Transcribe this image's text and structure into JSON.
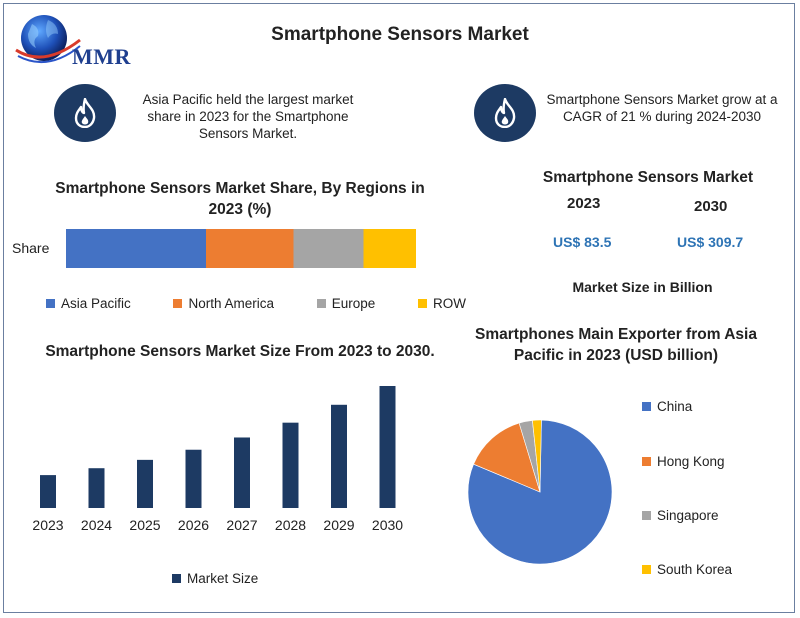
{
  "header": {
    "title": "Smartphone Sensors Market",
    "logo_text": "MMR"
  },
  "facts": [
    {
      "icon": "flame-icon",
      "text": "Asia Pacific held the largest market share in 2023 for the Smartphone Sensors Market."
    },
    {
      "icon": "flame-icon",
      "text": "Smartphone Sensors Market grow at a CAGR of 21 % during 2024-2030"
    }
  ],
  "kpi": {
    "title": "Smartphone Sensors Market",
    "year_a": "2023",
    "year_b": "2030",
    "value_a": "US$ 83.5",
    "value_b": "US$ 309.7",
    "unit_label": "Market Size in Billion"
  },
  "colors": {
    "navy": "#1d3a63",
    "blue": "#4472c4",
    "orange": "#ed7d31",
    "gray": "#a5a5a5",
    "yellow": "#ffc000",
    "value_blue": "#2e74b5"
  },
  "chart_data": [
    {
      "type": "bar",
      "orientation": "horizontal-stacked",
      "title": "Smartphone Sensors Market Share, By Regions in 2023 (%)",
      "categories": [
        "Share"
      ],
      "series": [
        {
          "name": "Asia Pacific",
          "values": [
            40
          ],
          "color": "#4472c4"
        },
        {
          "name": "North America",
          "values": [
            25
          ],
          "color": "#ed7d31"
        },
        {
          "name": "Europe",
          "values": [
            20
          ],
          "color": "#a5a5a5"
        },
        {
          "name": "ROW",
          "values": [
            15
          ],
          "color": "#ffc000"
        }
      ],
      "legend": "bottom"
    },
    {
      "type": "bar",
      "title": "Smartphone Sensors Market Size From 2023 to 2030.",
      "categories": [
        "2023",
        "2024",
        "2025",
        "2026",
        "2027",
        "2028",
        "2029",
        "2030"
      ],
      "series": [
        {
          "name": "Market Size",
          "values": [
            83.5,
            101,
            122.2,
            147.9,
            179,
            216.6,
            262,
            309.7
          ],
          "color": "#1d3a63"
        }
      ],
      "ylim": [
        0,
        330
      ],
      "legend": "bottom"
    },
    {
      "type": "pie",
      "title": "Smartphones Main Exporter from Asia Pacific in 2023 (USD billion)",
      "categories": [
        "China",
        "Hong Kong",
        "Singapore",
        "South Korea"
      ],
      "values": [
        81,
        14,
        3,
        2
      ],
      "colors": [
        "#4472c4",
        "#ed7d31",
        "#a5a5a5",
        "#ffc000"
      ],
      "legend": "right"
    }
  ]
}
